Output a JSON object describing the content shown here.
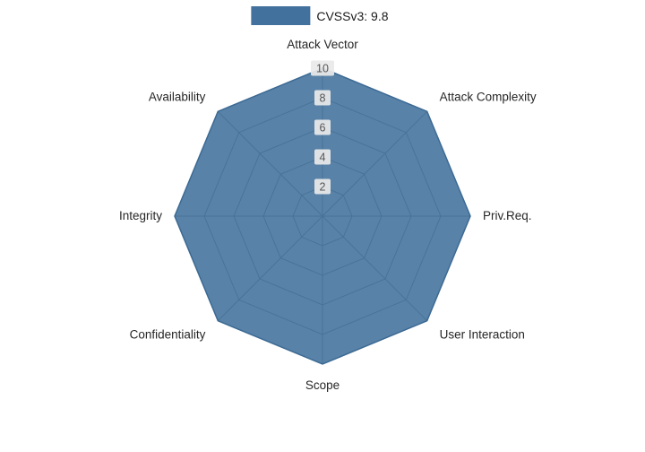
{
  "legend": {
    "label": "CVSSv3: 9.8"
  },
  "chart_data": {
    "type": "radar",
    "title": "",
    "categories": [
      "Attack Vector",
      "Attack Complexity",
      "Priv.Req.",
      "User Interaction",
      "Scope",
      "Confidentiality",
      "Integrity",
      "Availability"
    ],
    "series": [
      {
        "name": "CVSSv3: 9.8",
        "values": [
          10,
          10,
          10,
          10,
          10,
          10,
          10,
          10
        ]
      }
    ],
    "radial_ticks": [
      2,
      4,
      6,
      8,
      10
    ],
    "rmax": 10,
    "grid": true,
    "legend_position": "top-center",
    "colors": {
      "fill": "#41719c",
      "fill_opacity": 0.88,
      "line": "#3c6a94",
      "grid": "#7f7f7f",
      "tick_label_bg": "#e9e9e9",
      "tick_label_text": "#555555",
      "axis_label_text": "#262626"
    }
  }
}
